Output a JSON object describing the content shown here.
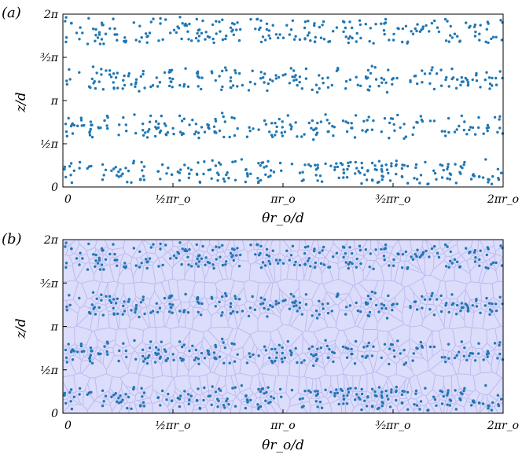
{
  "chart_data": [
    {
      "type": "scatter",
      "panel_label": "(a)",
      "xlabel": "θr_o/d",
      "ylabel": "z/d",
      "x_ticks": [
        "0",
        "½πr_o",
        "πr_o",
        "³⁄₂πr_o",
        "2πr_o"
      ],
      "y_ticks": [
        "0",
        "½π",
        "π",
        "³⁄₂π",
        "2π"
      ],
      "xlim": [
        0,
        6.2832
      ],
      "ylim": [
        0,
        6.2832
      ],
      "grid": false,
      "marker_color": "#1f77b4",
      "point_count": 900,
      "series": [
        {
          "description_of_density": "points concentrated in four horizontal bands",
          "bands": [
            {
              "z_center": 0.55,
              "z_halfwidth": 0.5,
              "count": 235
            },
            {
              "z_center": 2.2,
              "z_halfwidth": 0.5,
              "count": 215
            },
            {
              "z_center": 3.9,
              "z_halfwidth": 0.5,
              "count": 215
            },
            {
              "z_center": 5.7,
              "z_halfwidth": 0.55,
              "count": 235
            }
          ]
        }
      ]
    },
    {
      "type": "scatter",
      "panel_label": "(b)",
      "xlabel": "θr_o/d",
      "ylabel": "z/d",
      "x_ticks": [
        "0",
        "½πr_o",
        "πr_o",
        "³⁄₂πr_o",
        "2πr_o"
      ],
      "y_ticks": [
        "0",
        "½π",
        "π",
        "³⁄₂π",
        "2π"
      ],
      "xlim": [
        0,
        6.2832
      ],
      "ylim": [
        0,
        6.2832
      ],
      "grid": false,
      "marker_color": "#1f77b4",
      "cell_fill_color": "#dcdcfb",
      "cell_edge_color": "#b8b8ee",
      "overlay": "voronoi tessellation of points",
      "point_count": 900
    }
  ]
}
